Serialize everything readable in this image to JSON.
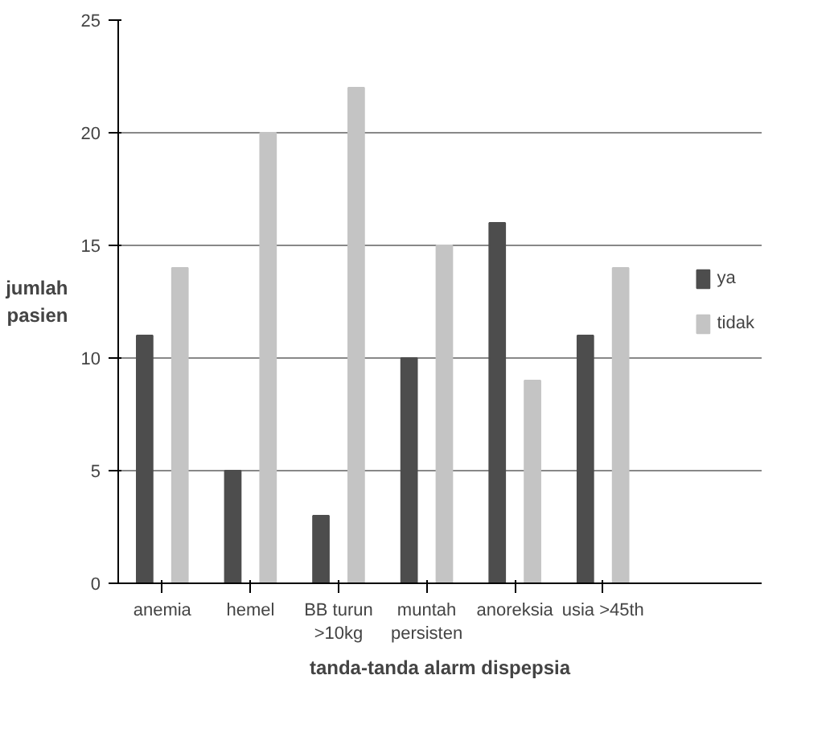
{
  "chart_data": {
    "type": "bar",
    "xlabel": "tanda-tanda alarm dispepsia",
    "ylabel": "jumlah\npasien",
    "categories": [
      "anemia",
      "hemel",
      "BB turun\n>10kg",
      "muntah\npersisten",
      "anoreksia",
      "usia >45th"
    ],
    "series": [
      {
        "name": "ya",
        "color": "#4d4d4d",
        "values": [
          11,
          5,
          3,
          10,
          16,
          11
        ]
      },
      {
        "name": "tidak",
        "color": "#c4c4c4",
        "values": [
          14,
          20,
          22,
          15,
          9,
          14
        ]
      }
    ],
    "ylim": [
      0,
      25
    ],
    "yticks": [
      0,
      5,
      10,
      15,
      20,
      25
    ],
    "grid": "y",
    "legend": "right"
  }
}
